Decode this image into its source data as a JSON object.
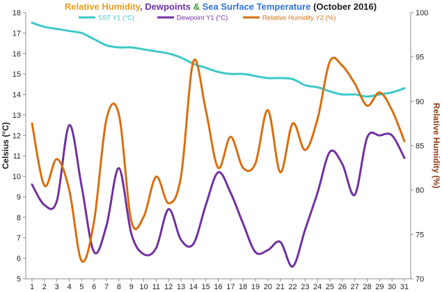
{
  "chart_data": {
    "type": "line",
    "title_parts": [
      {
        "text": "Relative Humidity",
        "color": "#e5a020"
      },
      {
        "text": ", ",
        "color": "#7030a0"
      },
      {
        "text": "Dewpoints",
        "color": "#7030a0"
      },
      {
        "text": " & ",
        "color": "#3a9a3a"
      },
      {
        "text": "Sea Surface Temperature",
        "color": "#2e75d6"
      },
      {
        "text": " (October 2016)",
        "color": "#1a1a1a"
      }
    ],
    "ylabel_left": "Celsius (°C)",
    "ylabel_right": "Relative Humidity  (%)",
    "x": [
      1,
      2,
      3,
      4,
      5,
      6,
      7,
      8,
      9,
      10,
      11,
      12,
      13,
      14,
      15,
      16,
      17,
      18,
      19,
      20,
      21,
      22,
      23,
      24,
      25,
      26,
      27,
      28,
      29,
      30,
      31
    ],
    "ylim_left": [
      5,
      18
    ],
    "ylim_right": [
      70,
      100
    ],
    "yticks_left": [
      5,
      6,
      7,
      8,
      9,
      10,
      11,
      12,
      13,
      14,
      15,
      16,
      17,
      18
    ],
    "yticks_right": [
      70,
      75,
      80,
      85,
      90,
      95,
      100
    ],
    "series": [
      {
        "name": "SST Y1 (°C)",
        "axis": "left",
        "color": "#3cc8c8",
        "values": [
          17.5,
          17.3,
          17.2,
          17.1,
          17.0,
          16.7,
          16.4,
          16.3,
          16.3,
          16.2,
          16.1,
          16.0,
          15.8,
          15.5,
          15.3,
          15.1,
          15.0,
          15.0,
          14.9,
          14.8,
          14.8,
          14.75,
          14.45,
          14.35,
          14.15,
          14.0,
          14.0,
          13.9,
          14.0,
          14.1,
          14.3
        ]
      },
      {
        "name": "Dewpoint Y1 (°C)",
        "axis": "left",
        "color": "#7030a0",
        "values": [
          9.6,
          8.6,
          8.8,
          12.5,
          9.5,
          6.3,
          7.6,
          10.4,
          7.2,
          6.2,
          6.5,
          8.4,
          6.9,
          6.7,
          8.6,
          10.2,
          9.2,
          7.7,
          6.3,
          6.4,
          6.8,
          5.6,
          7.4,
          9.2,
          11.2,
          10.6,
          9.1,
          11.9,
          12.0,
          12.0,
          10.9
        ]
      },
      {
        "name": "Relative Humidity Y2 (%)",
        "axis": "right",
        "color": "#d86e0e",
        "values": [
          87.5,
          80.5,
          83.5,
          80.0,
          72.0,
          76.5,
          88.0,
          88.5,
          76.5,
          77.0,
          81.5,
          78.5,
          81.5,
          94.5,
          89.0,
          82.5,
          86.0,
          82.5,
          83.0,
          89.0,
          82.0,
          87.5,
          84.5,
          88.0,
          94.5,
          94.0,
          92.0,
          89.5,
          91.0,
          89.0,
          85.5
        ]
      }
    ],
    "legend_position": "top",
    "grid": false
  }
}
